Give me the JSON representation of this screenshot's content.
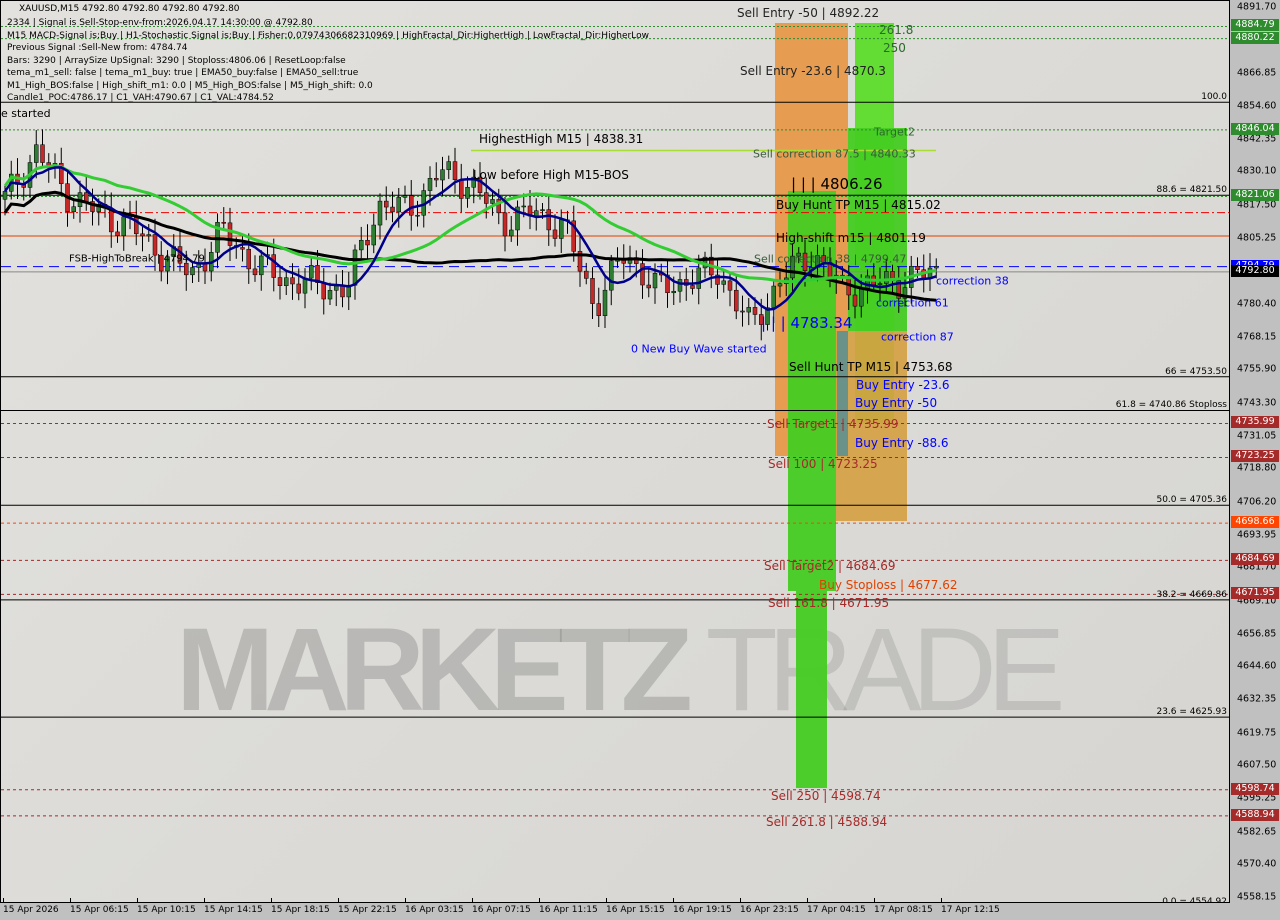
{
  "header": {
    "symbol_line": "XAUUSD,M15  4792.80 4792.80 4792.80 4792.80",
    "info": [
      "2334 | Signal is Sell-Stop-env-from:2026.04.17 14:30:00 @ 4792.80",
      "M15 MACD-Signal is:Buy | H1-Stochastic Signal is:Buy | Fisher:0.07974306682310969 | HighFractal_Dir:HigherHigh | LowFractal_Dir:HigherLow",
      "Previous Signal :Sell-New from: 4784.74",
      "Bars: 3290 | ArraySize UpSignal: 3290 | Stoploss:4806.06 | ResetLoop:false",
      "tema_m1_sell: false | tema_m1_buy: true | EMA50_buy:false | EMA50_sell:true",
      "M1_High_BOS:false | High_shift_m1: 0.0 | M5_High_BOS:false | M5_High_shift: 0.0",
      "Candle1_POC:4786.17 | C1_VAH:4790.67 | C1_VAL:4784.52"
    ],
    "started": "e started"
  },
  "colors": {
    "bull": "#2e7d32",
    "bear": "#c62828",
    "ema_blue": "#00008b",
    "ema_green": "#33cc33",
    "ma_black": "#000000",
    "green_tag": "#2e8b2e",
    "red_tag": "#a52a2a",
    "orange_tag": "#ff4500",
    "blue_tag": "#0000ff"
  },
  "chart_data": {
    "type": "candlestick",
    "symbol": "XAUUSD",
    "timeframe": "M15",
    "ylim": [
      4558.15,
      4891.7
    ],
    "y_ticks": [
      4891.7,
      4866.85,
      4854.6,
      4842.35,
      4830.1,
      4817.5,
      4805.25,
      4780.4,
      4768.15,
      4755.9,
      4743.3,
      4731.05,
      4718.8,
      4706.2,
      4693.95,
      4681.7,
      4669.1,
      4656.85,
      4644.6,
      4632.35,
      4619.75,
      4607.5,
      4595.25,
      4582.65,
      4570.4,
      4558.15
    ],
    "x_ticks": [
      "15 Apr 2026",
      "15 Apr 06:15",
      "15 Apr 10:15",
      "15 Apr 14:15",
      "15 Apr 18:15",
      "15 Apr 22:15",
      "16 Apr 03:15",
      "16 Apr 07:15",
      "16 Apr 11:15",
      "16 Apr 15:15",
      "16 Apr 19:15",
      "16 Apr 23:15",
      "17 Apr 04:15",
      "17 Apr 08:15",
      "17 Apr 12:15"
    ],
    "approx_close_path": [
      4820,
      4838,
      4822,
      4815,
      4810,
      4800,
      4792,
      4808,
      4796,
      4790,
      4788,
      4786,
      4818,
      4816,
      4830,
      4826,
      4812,
      4815,
      4810,
      4780,
      4800,
      4786,
      4790,
      4793,
      4772,
      4790,
      4800,
      4786,
      4788,
      4790,
      4792.8
    ],
    "price_tags": [
      {
        "v": "4884.79",
        "c": "green_tag"
      },
      {
        "v": "4880.22",
        "c": "green_tag"
      },
      {
        "v": "4846.04",
        "c": "green_tag"
      },
      {
        "v": "4821.06",
        "c": "green_tag"
      },
      {
        "v": "4794.79",
        "c": "blue_tag"
      },
      {
        "v": "4792.80",
        "c": "ma_black"
      },
      {
        "v": "4735.99",
        "c": "red_tag"
      },
      {
        "v": "4723.25",
        "c": "red_tag"
      },
      {
        "v": "4698.66",
        "c": "orange_tag"
      },
      {
        "v": "4684.69",
        "c": "red_tag"
      },
      {
        "v": "4671.95",
        "c": "red_tag"
      },
      {
        "v": "4598.74",
        "c": "red_tag"
      },
      {
        "v": "4588.94",
        "c": "red_tag"
      }
    ],
    "fib_levels": [
      {
        "label": "100.0",
        "p": 4856.4
      },
      {
        "label": "88.6 = 4821.50",
        "p": 4821.5
      },
      {
        "label": "66 = 4753.50",
        "p": 4753.5
      },
      {
        "label": "61.8 = 4740.86 Stoploss",
        "p": 4740.86
      },
      {
        "label": "50.0 = 4705.36",
        "p": 4705.36
      },
      {
        "label": "38.2 = 4669.86",
        "p": 4669.86
      },
      {
        "label": "23.6 = 4625.93",
        "p": 4625.93
      },
      {
        "label": "0.0 = 4554.92",
        "p": 4554.92
      }
    ]
  },
  "annotations": {
    "sell_entry_50": "Sell Entry -50 | 4892.22",
    "sell_entry_236": "Sell Entry -23.6 | 4870.3",
    "t2618": "261.8",
    "t250": "250",
    "target2": "Target2",
    "sell_corr_875": "Sell correction 87.5 | 4840.33",
    "highest_high": "HighestHigh   M15 | 4838.31",
    "low_before_high": "Low before High   M15-BOS",
    "level_4806": "| | | 4806.26",
    "buy_hunt": "Buy Hunt  TP M15 | 4815.02",
    "high_shift": "High-shift m15 | 4801.19",
    "sell_corr_38": "Sell correction 38 | 4799.47",
    "fsb": "FSB-HighToBreak | 4794.79",
    "corr38": "correction 38",
    "corr61": "correction 61",
    "corr87": "correction 87",
    "level_4783": "| | | 4783.34",
    "new_buy_wave": "0 New Buy Wave started",
    "sell_hunt": "Sell Hunt  TP M15 | 4753.68",
    "buy_entry_236": "Buy Entry -23.6",
    "buy_entry_50": "Buy Entry -50",
    "buy_entry_886": "Buy Entry -88.6",
    "sell_target1": "Sell Target1 | 4735.99",
    "sell_100": "Sell 100 | 4723.25",
    "sell_target2": "Sell Target2 | 4684.69",
    "buy_stoploss": "Buy Stoploss | 4677.62",
    "sell_1618": "Sell 161.8 | 4671.95",
    "sell_250": "Sell 250 | 4598.74",
    "sell_2618": "Sell 261.8 | 4588.94"
  },
  "watermark": {
    "bold": "MARKETZ",
    "light": "TRADE"
  }
}
